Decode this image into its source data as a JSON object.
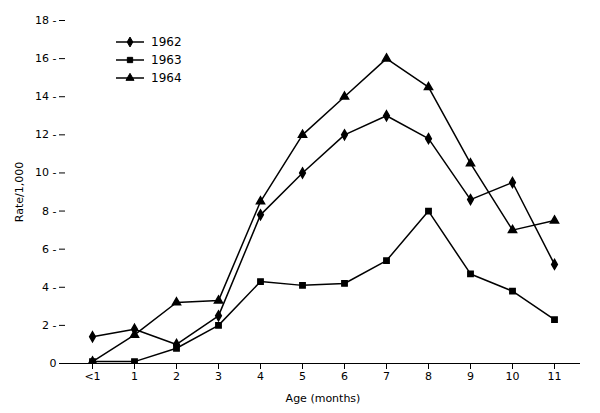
{
  "chart_data": {
    "type": "line",
    "xlabel": "Age (months)",
    "ylabel": "Rate/1,000",
    "categories": [
      "<1",
      "1",
      "2",
      "3",
      "4",
      "5",
      "6",
      "7",
      "8",
      "9",
      "10",
      "11"
    ],
    "series": [
      {
        "name": "1962",
        "color": "black",
        "marker": "diamond",
        "values": [
          1.4,
          1.8,
          1.0,
          2.5,
          7.8,
          10.0,
          12.0,
          13.0,
          11.8,
          8.6,
          9.5,
          5.2
        ]
      },
      {
        "name": "1963",
        "color": "black",
        "marker": "square",
        "values": [
          0.1,
          0.1,
          0.8,
          2.0,
          4.3,
          4.1,
          4.2,
          5.4,
          8.0,
          4.7,
          3.8,
          2.3
        ]
      },
      {
        "name": "1964",
        "color": "black",
        "marker": "triangle",
        "values": [
          0.1,
          1.5,
          3.2,
          3.3,
          8.5,
          12.0,
          14.0,
          16.0,
          14.5,
          10.5,
          7.0,
          7.5
        ]
      }
    ],
    "ylim": [
      0,
      18
    ],
    "yticks": [
      0,
      {
        "value": 2,
        "label": "2 -"
      },
      {
        "value": 4,
        "label": "4 -"
      },
      {
        "value": 6,
        "label": "6 -"
      },
      {
        "value": 8,
        "label": "8 -"
      },
      {
        "value": 10,
        "label": "10 -"
      },
      {
        "value": 12,
        "label": "12 -"
      },
      {
        "value": 14,
        "label": "14 -"
      },
      {
        "value": 16,
        "label": "16 -"
      },
      {
        "value": 18,
        "label": "18 -"
      }
    ],
    "grid": false,
    "legend": "upper left"
  }
}
